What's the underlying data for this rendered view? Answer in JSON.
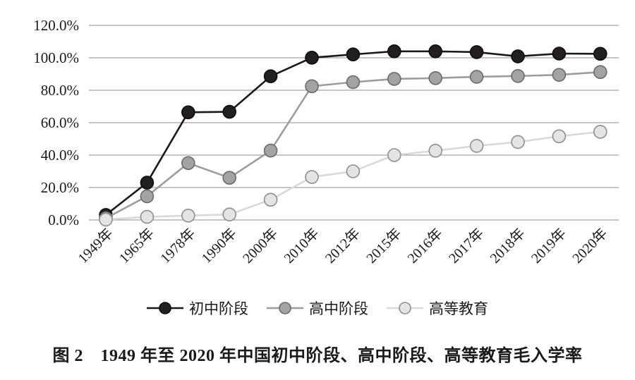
{
  "figure": {
    "caption": "图 2　1949 年至 2020 年中国初中阶段、高中阶段、高等教育毛入学率"
  },
  "chart_data": {
    "type": "line",
    "title": "1949年至2020年中国初中阶段、高中阶段、高等教育毛入学率",
    "xlabel": "",
    "ylabel": "",
    "categories": [
      "1949年",
      "1965年",
      "1978年",
      "1990年",
      "2000年",
      "2010年",
      "2012年",
      "2015年",
      "2016年",
      "2017年",
      "2018年",
      "2019年",
      "2020年"
    ],
    "series": [
      {
        "key": "junior-secondary",
        "name": "初中阶段",
        "values": [
          3.1,
          23.0,
          66.4,
          66.7,
          88.6,
          100.1,
          102.1,
          104.0,
          104.0,
          103.5,
          100.9,
          102.6,
          102.5
        ],
        "line_color": "#1c1819",
        "marker_fill": "#231f20",
        "marker_stroke": "#0f0d0e"
      },
      {
        "key": "senior-secondary",
        "name": "高中阶段",
        "values": [
          1.1,
          14.6,
          35.1,
          26.0,
          42.8,
          82.5,
          85.0,
          87.0,
          87.5,
          88.3,
          88.8,
          89.5,
          91.2
        ],
        "line_color": "#9d9d9d",
        "marker_fill": "#a3a3a3",
        "marker_stroke": "#6b6b6b"
      },
      {
        "key": "higher-education",
        "name": "高等教育",
        "values": [
          0.26,
          1.9,
          2.7,
          3.4,
          12.5,
          26.5,
          30.0,
          40.0,
          42.7,
          45.7,
          48.1,
          51.6,
          54.4
        ],
        "line_color": "#d9d9d9",
        "marker_fill": "#e4e4e4",
        "marker_stroke": "#8f8f8f"
      }
    ],
    "ylim": [
      0,
      120
    ],
    "ytick_step": 20,
    "ytick_labels": [
      "0.0%",
      "20.0%",
      "40.0%",
      "60.0%",
      "80.0%",
      "100.0%",
      "120.0%"
    ],
    "grid": true,
    "grid_color": "#8c8c8c",
    "legend_position": "bottom"
  }
}
